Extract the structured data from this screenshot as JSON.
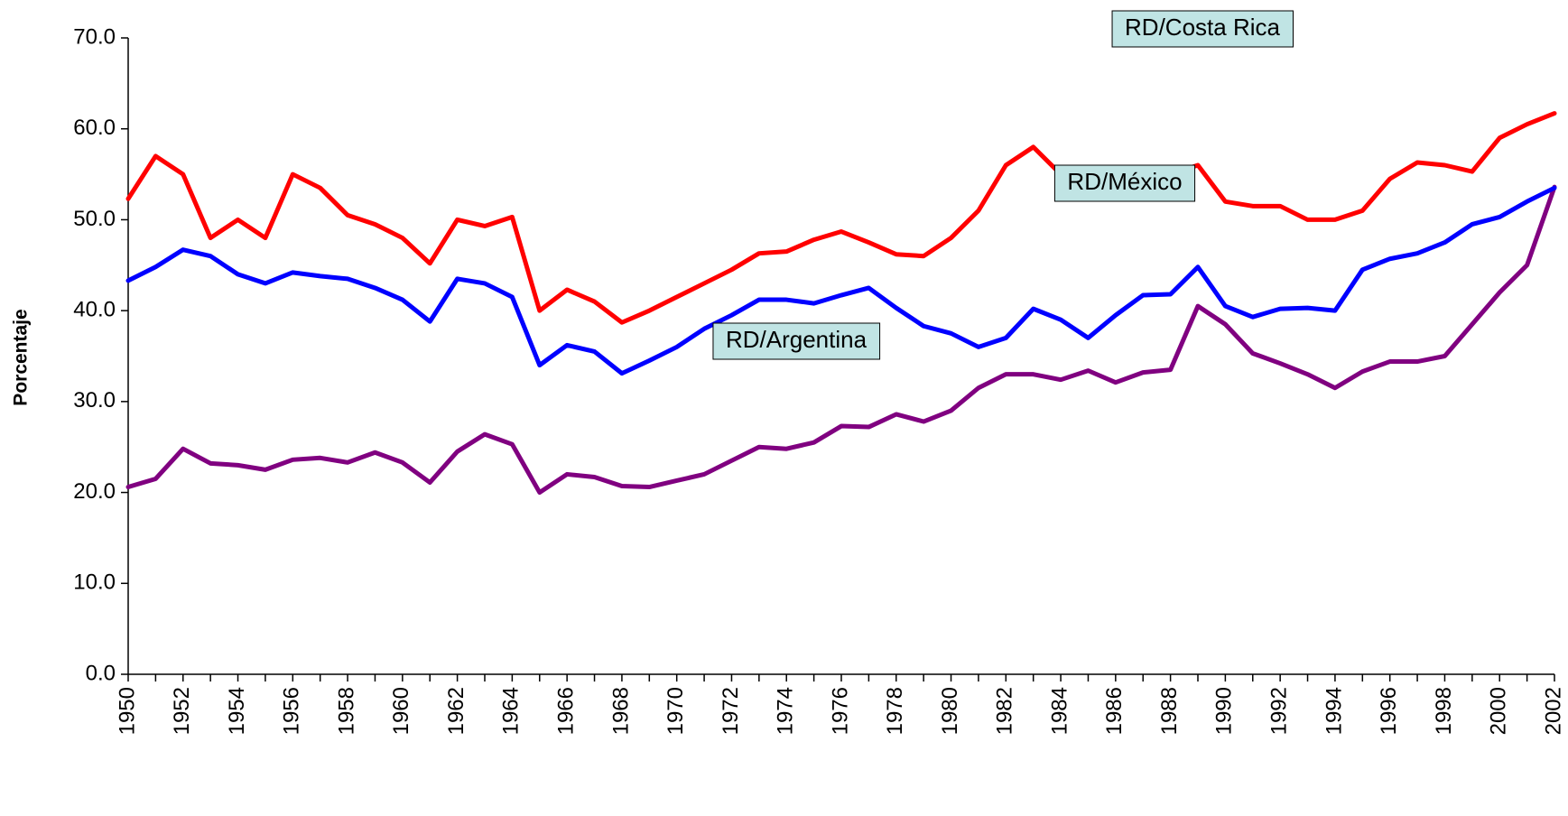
{
  "chart_data": {
    "type": "line",
    "y_label": "Porcentaje",
    "x": [
      1950,
      1951,
      1952,
      1953,
      1954,
      1955,
      1956,
      1957,
      1958,
      1959,
      1960,
      1961,
      1962,
      1963,
      1964,
      1965,
      1966,
      1967,
      1968,
      1969,
      1970,
      1971,
      1972,
      1973,
      1974,
      1975,
      1976,
      1977,
      1978,
      1979,
      1980,
      1981,
      1982,
      1983,
      1984,
      1985,
      1986,
      1987,
      1988,
      1989,
      1990,
      1991,
      1992,
      1993,
      1994,
      1995,
      1996,
      1997,
      1998,
      1999,
      2000,
      2001,
      2002
    ],
    "series": [
      {
        "name": "RD/Costa Rica",
        "color": "#ff0000",
        "values": [
          52.3,
          57.0,
          55.0,
          48.0,
          50.0,
          48.0,
          55.0,
          53.5,
          50.5,
          49.5,
          48.0,
          45.2,
          50.0,
          49.3,
          50.3,
          40.0,
          42.3,
          41.0,
          38.7,
          40.0,
          41.5,
          43.0,
          44.5,
          46.3,
          46.5,
          47.8,
          48.7,
          47.5,
          46.2,
          46.0,
          48.0,
          51.0,
          56.0,
          58.0,
          55.0,
          54.5,
          54.0,
          54.5,
          55.0,
          56.0,
          52.0,
          51.5,
          51.5,
          50.0,
          50.0,
          51.0,
          54.5,
          56.3,
          56.0,
          55.3,
          59.0,
          60.5,
          61.7
        ]
      },
      {
        "name": "RD/México",
        "color": "#800080",
        "values": [
          20.6,
          21.5,
          24.8,
          23.2,
          23.0,
          22.5,
          23.6,
          23.8,
          23.3,
          24.4,
          23.3,
          21.1,
          24.5,
          26.4,
          25.3,
          20.0,
          22.0,
          21.7,
          20.7,
          20.6,
          21.3,
          22.0,
          23.5,
          25.0,
          24.8,
          25.5,
          27.3,
          27.2,
          28.6,
          27.8,
          29.0,
          31.5,
          33.0,
          33.0,
          32.4,
          33.4,
          32.1,
          33.2,
          33.5,
          40.5,
          38.5,
          35.3,
          34.2,
          33.0,
          31.5,
          33.3,
          34.4,
          34.4,
          35.0,
          38.5,
          42.0,
          45.0,
          53.6
        ]
      },
      {
        "name": "RD/Argentina",
        "color": "#0000ff",
        "values": [
          43.3,
          44.8,
          46.7,
          46.0,
          44.0,
          43.0,
          44.2,
          43.8,
          43.5,
          42.5,
          41.2,
          38.8,
          43.5,
          43.0,
          41.5,
          34.0,
          36.2,
          35.5,
          33.1,
          34.5,
          36.0,
          38.0,
          39.5,
          41.2,
          41.2,
          40.8,
          41.7,
          42.5,
          40.3,
          38.3,
          37.5,
          36.0,
          37.0,
          40.2,
          39.0,
          37.0,
          39.5,
          41.7,
          41.8,
          44.8,
          40.5,
          39.3,
          40.2,
          40.3,
          40.0,
          44.5,
          45.7,
          46.3,
          47.5,
          49.5,
          50.3,
          52.0,
          53.5
        ]
      }
    ],
    "xlim": [
      1950,
      2002
    ],
    "xticks": [
      1950,
      1952,
      1954,
      1956,
      1958,
      1960,
      1962,
      1964,
      1966,
      1968,
      1970,
      1972,
      1974,
      1976,
      1978,
      1980,
      1982,
      1984,
      1986,
      1988,
      1990,
      1992,
      1994,
      1996,
      1998,
      2000,
      2002
    ],
    "ylim": [
      0,
      70
    ],
    "yticks": [
      {
        "value": 0,
        "label": "0.0"
      },
      {
        "value": 10,
        "label": "10.0"
      },
      {
        "value": 20,
        "label": "20.0"
      },
      {
        "value": 30,
        "label": "30.0"
      },
      {
        "value": 40,
        "label": "40.0"
      },
      {
        "value": 50,
        "label": "50.0"
      },
      {
        "value": 60,
        "label": "60.0"
      },
      {
        "value": 70,
        "label": "70.0"
      }
    ],
    "grid": false,
    "legend": "boxes"
  }
}
